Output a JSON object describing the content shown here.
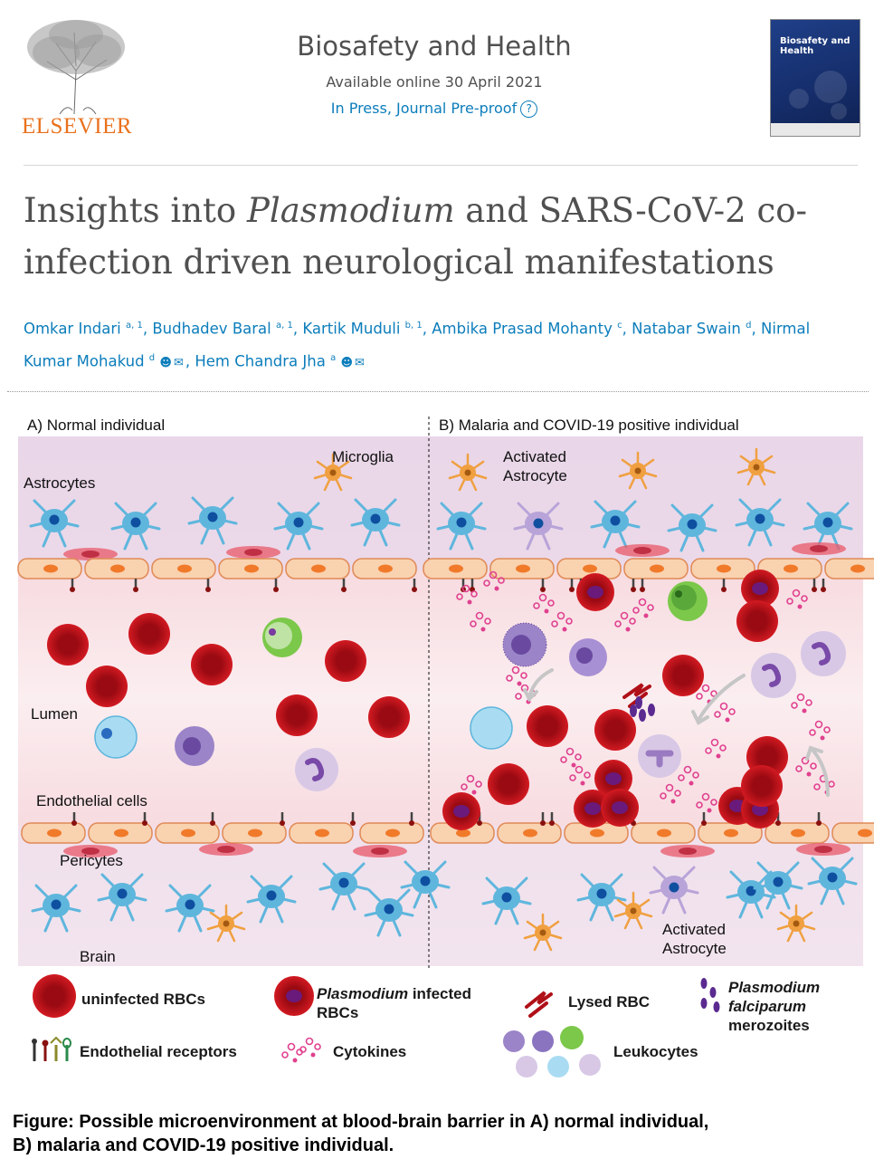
{
  "header": {
    "publisher": "ELSEVIER",
    "journal": "Biosafety and Health",
    "online_date": "Available online 30 April 2021",
    "status": "In Press, Journal Pre-proof",
    "help_glyph": "?",
    "cover_title": "Biosafety and Health"
  },
  "article": {
    "title_pre": "Insights into ",
    "title_italic": "Plasmodium",
    "title_post": " and SARS-CoV-2 co-infection driven neurological manifestations",
    "authors": [
      {
        "name": "Omkar Indari",
        "sup": "a, 1"
      },
      {
        "name": "Budhadev Baral",
        "sup": "a, 1"
      },
      {
        "name": "Kartik Muduli",
        "sup": "b, 1"
      },
      {
        "name": "Ambika Prasad Mohanty",
        "sup": "c"
      },
      {
        "name": "Natabar Swain",
        "sup": "d"
      },
      {
        "name": "Nirmal Kumar Mohakud",
        "sup": "d"
      },
      {
        "name": "Hem Chandra Jha",
        "sup": "a"
      }
    ]
  },
  "figure": {
    "panel_a": "A) Normal individual",
    "panel_b": "B) Malaria and COVID-19 positive individual",
    "labels": {
      "astrocytes": "Astrocytes",
      "microglia": "Microglia",
      "lumen": "Lumen",
      "endothelial": "Endothelial cells",
      "pericytes": "Pericytes",
      "brain": "Brain",
      "activated_astrocyte_top_1": "Activated",
      "activated_astrocyte_top_2": "Astrocyte",
      "activated_astrocyte_bottom_1": "Activated",
      "activated_astrocyte_bottom_2": "Astrocyte"
    },
    "legend": {
      "uninfected": "uninfected RBCs",
      "infected_italic": "Plasmodium",
      "infected_rest": " infected",
      "infected_line2": "RBCs",
      "lysed": "Lysed RBC",
      "merozoites_1": "Plasmodium",
      "merozoites_2": "falciparum",
      "merozoites_3": "merozoites",
      "receptors": "Endothelial receptors",
      "cytokines": "Cytokines",
      "leukocytes": "Leukocytes"
    },
    "caption_1": "Figure: Possible microenvironment at blood-brain barrier in A) normal individual,",
    "caption_2": "B) malaria and COVID-19 positive individual."
  },
  "colors": {
    "link_blue": "#0c7dbb",
    "publisher_orange": "#e9711c",
    "rbc_red": "#c8141c",
    "astrocyte_blue": "#5fb6dd",
    "microglia_orange": "#f0a040",
    "cytokine_pink": "#e0418f"
  }
}
